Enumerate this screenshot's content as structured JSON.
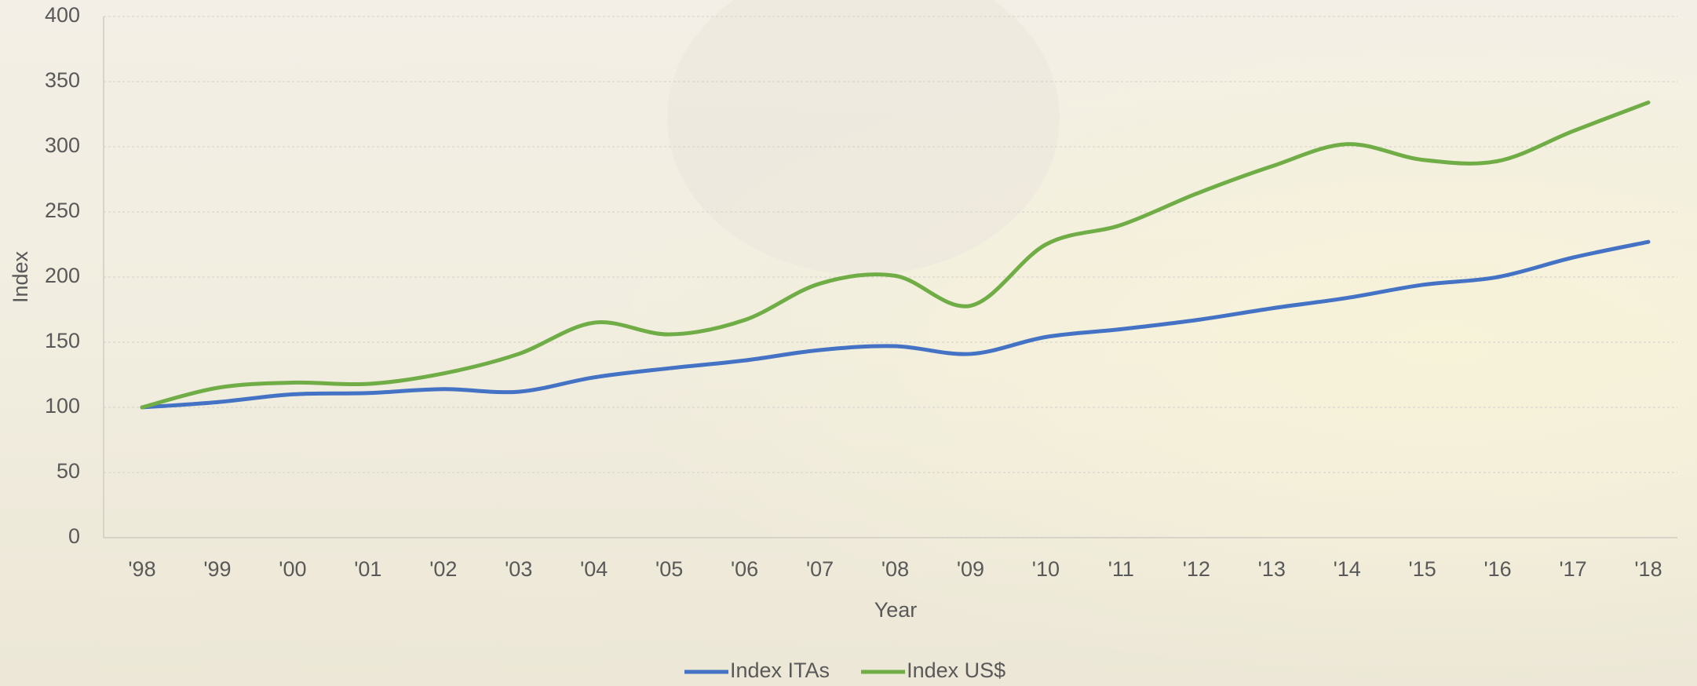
{
  "chart_data": {
    "type": "line",
    "x_label": "Year",
    "y_label": "Index",
    "categories": [
      "'98",
      "'99",
      "'00",
      "'01",
      "'02",
      "'03",
      "'04",
      "'05",
      "'06",
      "'07",
      "'08",
      "'09",
      "'10",
      "'11",
      "'12",
      "'13",
      "'14",
      "'15",
      "'16",
      "'17",
      "'18"
    ],
    "series": [
      {
        "name": "Index ITAs",
        "color": "#4472c4",
        "values": [
          100,
          104,
          110,
          111,
          114,
          112,
          123,
          130,
          136,
          144,
          147,
          141,
          154,
          160,
          167,
          176,
          184,
          194,
          200,
          215,
          227
        ]
      },
      {
        "name": "Index US$",
        "color": "#70ad47",
        "values": [
          100,
          115,
          119,
          118,
          126,
          141,
          165,
          156,
          167,
          195,
          201,
          178,
          225,
          240,
          264,
          285,
          302,
          290,
          289,
          312,
          334
        ]
      }
    ],
    "ylim": [
      0,
      400
    ],
    "yticks": [
      0,
      50,
      100,
      150,
      200,
      250,
      300,
      350,
      400
    ],
    "grid": true,
    "legend": "bottom"
  }
}
